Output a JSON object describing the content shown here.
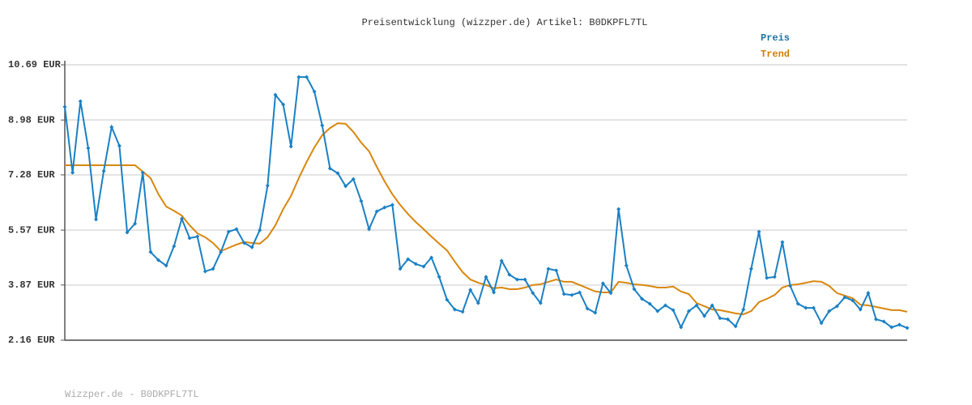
{
  "chart_data": {
    "type": "line",
    "title": "Preisentwicklung (wizzper.de) Artikel: B0DKPFL7TL",
    "footer": "Wizzper.de - B0DKPFL7TL",
    "categories": [
      null,
      null,
      null,
      null,
      null,
      null,
      null,
      null,
      null,
      null,
      null,
      null,
      null,
      null,
      null,
      null,
      null,
      null,
      null,
      null,
      null,
      null,
      null,
      null,
      null,
      null,
      null,
      null,
      null,
      null,
      null,
      null,
      null,
      null,
      null,
      null,
      null,
      null,
      null,
      null,
      null,
      null,
      null,
      null,
      null,
      null,
      null,
      null,
      null,
      null,
      null,
      null,
      null,
      null,
      null,
      null,
      null,
      null,
      null,
      null,
      null,
      null,
      null,
      null,
      null,
      null,
      null,
      null,
      null,
      null,
      null,
      null,
      null,
      null,
      null,
      null,
      null,
      null,
      null,
      null,
      null,
      null,
      null,
      null,
      null,
      null,
      null,
      null,
      null,
      null,
      null,
      null,
      null,
      null,
      null,
      null,
      null,
      null,
      null,
      null,
      null,
      null,
      null,
      null,
      null,
      null,
      null,
      null,
      null
    ],
    "series": [
      {
        "name": "Preis",
        "color": "#1a80c4",
        "label_color": "#1b73a0",
        "markers": true,
        "values": [
          9.39,
          7.35,
          9.56,
          8.11,
          5.9,
          7.4,
          8.76,
          8.18,
          5.5,
          5.77,
          7.35,
          4.89,
          4.64,
          4.47,
          5.07,
          5.92,
          5.32,
          5.37,
          4.29,
          4.37,
          4.89,
          5.52,
          5.6,
          5.17,
          5.04,
          5.57,
          6.95,
          9.76,
          9.46,
          8.16,
          10.31,
          10.31,
          9.86,
          8.81,
          7.48,
          7.33,
          6.93,
          7.15,
          6.47,
          5.6,
          6.15,
          6.27,
          6.35,
          4.37,
          4.67,
          4.52,
          4.44,
          4.72,
          4.12,
          3.41,
          3.11,
          3.04,
          3.72,
          3.31,
          4.12,
          3.64,
          4.62,
          4.19,
          4.04,
          4.04,
          3.62,
          3.31,
          4.37,
          4.32,
          3.59,
          3.56,
          3.64,
          3.14,
          3.01,
          3.92,
          3.62,
          6.22,
          4.47,
          3.74,
          3.44,
          3.29,
          3.06,
          3.24,
          3.09,
          2.56,
          3.06,
          3.24,
          2.91,
          3.24,
          2.84,
          2.81,
          2.59,
          3.11,
          4.37,
          5.52,
          4.09,
          4.12,
          5.2,
          3.84,
          3.29,
          3.16,
          3.16,
          2.69,
          3.06,
          3.21,
          3.49,
          3.39,
          3.11,
          3.62,
          2.81,
          2.74,
          2.56,
          2.64,
          2.54
        ]
      },
      {
        "name": "Trend",
        "color": "#d9870f",
        "label_color": "#d07d0a",
        "markers": false,
        "values": [
          7.58,
          7.58,
          7.58,
          7.58,
          7.58,
          7.58,
          7.58,
          7.58,
          7.58,
          7.58,
          7.38,
          7.18,
          6.68,
          6.3,
          6.17,
          6.02,
          5.72,
          5.47,
          5.35,
          5.17,
          4.92,
          5.02,
          5.12,
          5.2,
          5.17,
          5.15,
          5.35,
          5.72,
          6.22,
          6.63,
          7.18,
          7.68,
          8.13,
          8.51,
          8.73,
          8.88,
          8.86,
          8.61,
          8.28,
          8.01,
          7.53,
          7.08,
          6.68,
          6.35,
          6.07,
          5.82,
          5.6,
          5.37,
          5.15,
          4.94,
          4.59,
          4.27,
          4.04,
          3.94,
          3.87,
          3.77,
          3.79,
          3.74,
          3.74,
          3.79,
          3.87,
          3.89,
          3.97,
          4.04,
          3.97,
          3.97,
          3.87,
          3.77,
          3.67,
          3.64,
          3.64,
          3.97,
          3.94,
          3.89,
          3.87,
          3.84,
          3.79,
          3.79,
          3.82,
          3.67,
          3.59,
          3.31,
          3.21,
          3.11,
          3.09,
          3.04,
          2.99,
          2.96,
          3.06,
          3.34,
          3.44,
          3.56,
          3.79,
          3.87,
          3.89,
          3.94,
          3.99,
          3.97,
          3.84,
          3.62,
          3.54,
          3.46,
          3.26,
          3.24,
          3.19,
          3.14,
          3.09,
          3.09,
          3.04
        ]
      }
    ],
    "ylim": [
      2.16,
      10.69
    ],
    "yticks": [
      {
        "value": 2.16,
        "label": "2.16 EUR"
      },
      {
        "value": 3.87,
        "label": "3.87 EUR"
      },
      {
        "value": 5.57,
        "label": "5.57 EUR"
      },
      {
        "value": 7.28,
        "label": "7.28 EUR"
      },
      {
        "value": 8.98,
        "label": "8.98 EUR"
      },
      {
        "value": 10.69,
        "label": "10.69 EUR"
      }
    ],
    "grid": true
  }
}
